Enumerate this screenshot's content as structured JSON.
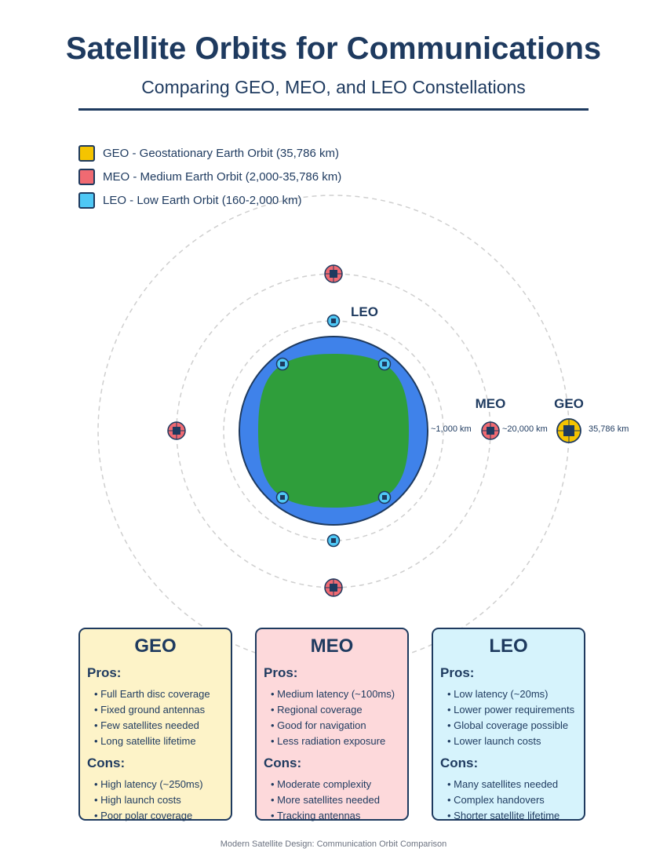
{
  "header": {
    "title": "Satellite Orbits for Communications",
    "subtitle": "Comparing GEO, MEO, and LEO Constellations"
  },
  "legend": [
    {
      "label": "GEO - Geostationary Earth Orbit (35,786 km)",
      "color": "#f5c400"
    },
    {
      "label": "MEO - Medium Earth Orbit (2,000-35,786 km)",
      "color": "#f06a72"
    },
    {
      "label": "LEO - Low Earth Orbit (160-2,000 km)",
      "color": "#4fc8f5"
    }
  ],
  "diagram": {
    "orbits": [
      {
        "name": "LEO",
        "distance": "~1,000 km",
        "color": "#4fc8f5"
      },
      {
        "name": "MEO",
        "distance": "~20,000 km",
        "color": "#f06a72"
      },
      {
        "name": "GEO",
        "distance": "35,786 km",
        "color": "#f5c400"
      }
    ],
    "earth": {
      "ocean_color": "#3f82ea",
      "land_color": "#2f9e3b"
    }
  },
  "cards": [
    {
      "title": "GEO",
      "bg": "#fdf3c8",
      "pros_label": "Pros:",
      "pros": [
        "Full Earth disc coverage",
        "Fixed ground antennas",
        "Few satellites needed",
        "Long satellite lifetime"
      ],
      "cons_label": "Cons:",
      "cons": [
        "High latency (~250ms)",
        "High launch costs",
        "Poor polar coverage"
      ]
    },
    {
      "title": "MEO",
      "bg": "#fdd9db",
      "pros_label": "Pros:",
      "pros": [
        "Medium latency (~100ms)",
        "Regional coverage",
        "Good for navigation",
        "Less radiation exposure"
      ],
      "cons_label": "Cons:",
      "cons": [
        "Moderate complexity",
        "More satellites needed",
        "Tracking antennas"
      ]
    },
    {
      "title": "LEO",
      "bg": "#d6f3fc",
      "pros_label": "Pros:",
      "pros": [
        "Low latency (~20ms)",
        "Lower power requirements",
        "Global coverage possible",
        "Lower launch costs"
      ],
      "cons_label": "Cons:",
      "cons": [
        "Many satellites needed",
        "Complex handovers",
        "Shorter satellite lifetime"
      ]
    }
  ],
  "footer": "Modern Satellite Design: Communication Orbit Comparison"
}
